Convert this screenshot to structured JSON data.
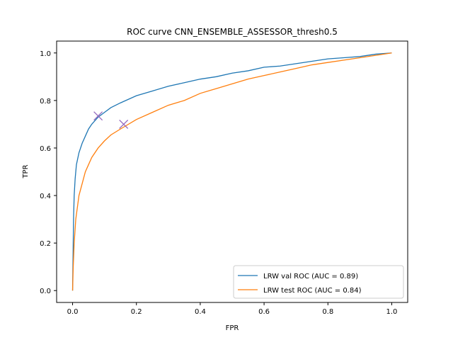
{
  "chart_data": {
    "type": "line",
    "title": "ROC curve CNN_ENSEMBLE_ASSESSOR_thresh0.5",
    "xlabel": "FPR",
    "ylabel": "TPR",
    "xlim": [
      -0.05,
      1.05
    ],
    "ylim": [
      -0.05,
      1.05
    ],
    "xticks": [
      "0.0",
      "0.2",
      "0.4",
      "0.6",
      "0.8",
      "1.0"
    ],
    "yticks": [
      "0.0",
      "0.2",
      "0.4",
      "0.6",
      "0.8",
      "1.0"
    ],
    "grid": false,
    "legend_position": "lower-right",
    "series": [
      {
        "name": "LRW val ROC (AUC = 0.89)",
        "color": "#1f77b4",
        "points": [
          [
            0,
            0
          ],
          [
            0.001,
            0.1
          ],
          [
            0.002,
            0.2
          ],
          [
            0.003,
            0.3
          ],
          [
            0.005,
            0.4
          ],
          [
            0.008,
            0.47
          ],
          [
            0.012,
            0.53
          ],
          [
            0.02,
            0.58
          ],
          [
            0.03,
            0.62
          ],
          [
            0.04,
            0.65
          ],
          [
            0.05,
            0.68
          ],
          [
            0.06,
            0.7
          ],
          [
            0.08,
            0.73
          ],
          [
            0.1,
            0.75
          ],
          [
            0.12,
            0.77
          ],
          [
            0.15,
            0.79
          ],
          [
            0.2,
            0.82
          ],
          [
            0.25,
            0.84
          ],
          [
            0.3,
            0.86
          ],
          [
            0.35,
            0.875
          ],
          [
            0.4,
            0.89
          ],
          [
            0.45,
            0.9
          ],
          [
            0.5,
            0.915
          ],
          [
            0.55,
            0.925
          ],
          [
            0.6,
            0.94
          ],
          [
            0.65,
            0.945
          ],
          [
            0.7,
            0.955
          ],
          [
            0.75,
            0.965
          ],
          [
            0.8,
            0.975
          ],
          [
            0.85,
            0.98
          ],
          [
            0.9,
            0.985
          ],
          [
            0.95,
            0.995
          ],
          [
            1.0,
            1.0
          ]
        ],
        "marker": [
          0.08,
          0.735
        ]
      },
      {
        "name": "LRW test ROC (AUC = 0.84)",
        "color": "#ff7f0e",
        "points": [
          [
            0,
            0
          ],
          [
            0.002,
            0.1
          ],
          [
            0.005,
            0.2
          ],
          [
            0.01,
            0.3
          ],
          [
            0.015,
            0.35
          ],
          [
            0.02,
            0.4
          ],
          [
            0.03,
            0.45
          ],
          [
            0.04,
            0.5
          ],
          [
            0.05,
            0.53
          ],
          [
            0.06,
            0.56
          ],
          [
            0.08,
            0.6
          ],
          [
            0.1,
            0.63
          ],
          [
            0.12,
            0.655
          ],
          [
            0.15,
            0.68
          ],
          [
            0.2,
            0.72
          ],
          [
            0.25,
            0.75
          ],
          [
            0.3,
            0.78
          ],
          [
            0.35,
            0.8
          ],
          [
            0.4,
            0.83
          ],
          [
            0.45,
            0.85
          ],
          [
            0.5,
            0.87
          ],
          [
            0.55,
            0.89
          ],
          [
            0.6,
            0.905
          ],
          [
            0.65,
            0.92
          ],
          [
            0.7,
            0.935
          ],
          [
            0.75,
            0.95
          ],
          [
            0.8,
            0.96
          ],
          [
            0.85,
            0.97
          ],
          [
            0.9,
            0.98
          ],
          [
            0.95,
            0.99
          ],
          [
            1.0,
            1.0
          ]
        ],
        "marker": [
          0.16,
          0.7
        ]
      }
    ],
    "marker_color": "#9467bd"
  }
}
